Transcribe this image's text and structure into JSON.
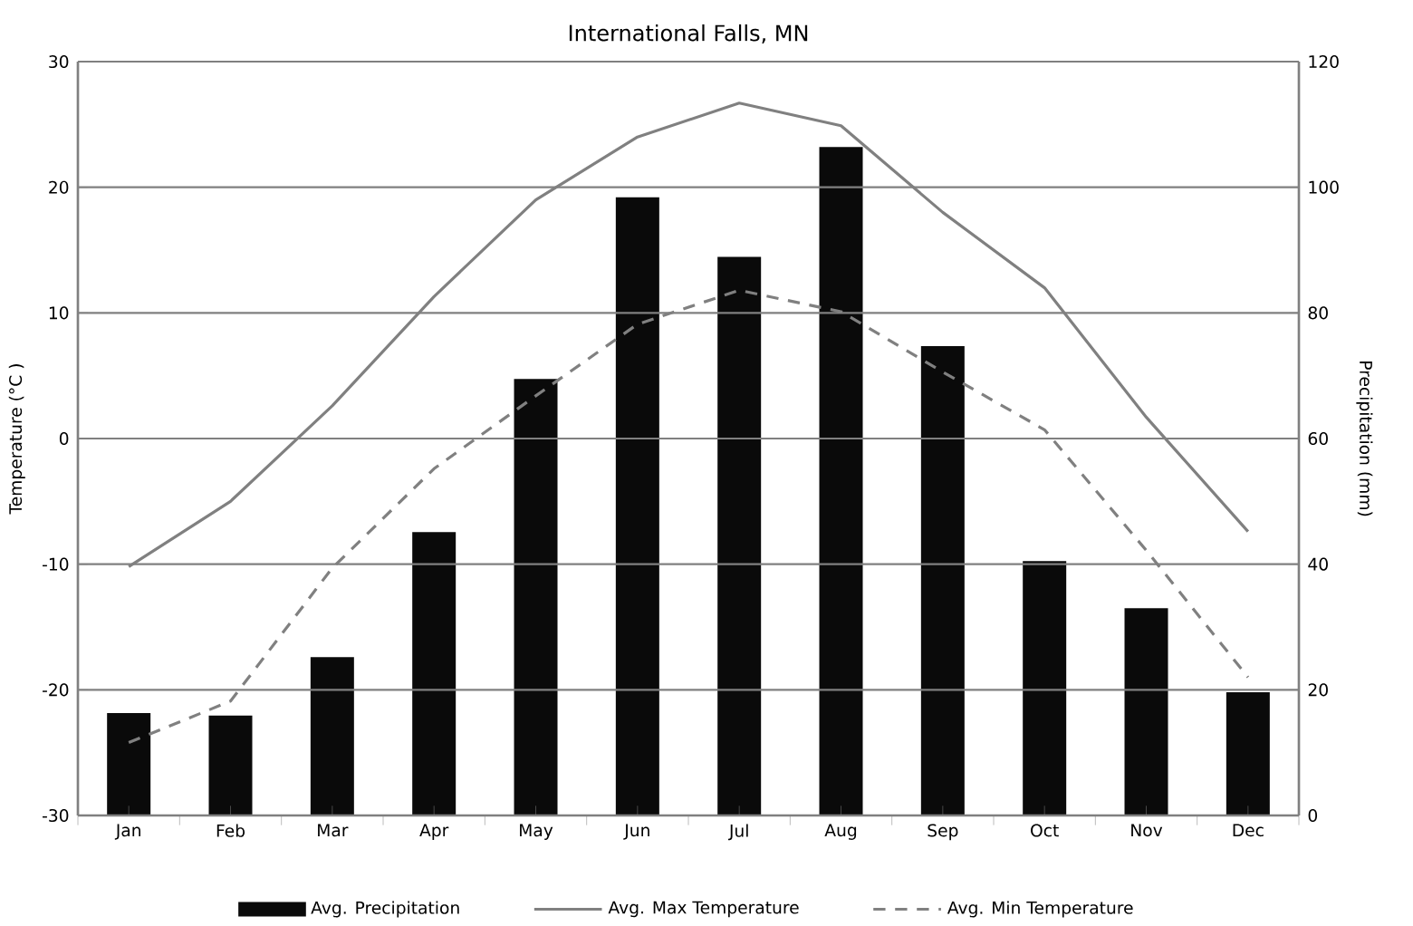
{
  "chart_data": {
    "type": "bar",
    "title": "International Falls, MN",
    "ylabel": "Temperature (°C )",
    "y2label": "Precipitation (mm)",
    "categories": [
      "Jan",
      "Feb",
      "Mar",
      "Apr",
      "May",
      "Jun",
      "Jul",
      "Aug",
      "Sep",
      "Oct",
      "Nov",
      "Dec"
    ],
    "series": [
      {
        "name": "Avg. Precipitation",
        "axis": "y2",
        "color": "#0a0a0a",
        "values": [
          16.3,
          15.9,
          25.2,
          45.1,
          69.5,
          98.4,
          88.9,
          106.4,
          74.7,
          40.5,
          33.0,
          19.6
        ]
      },
      {
        "name": "Avg. Max Temperature",
        "type": "line",
        "color": "#808080",
        "line_style": "solid",
        "values": [
          -10.2,
          -5.0,
          2.6,
          11.3,
          19.0,
          24.0,
          26.7,
          24.9,
          18.0,
          12.0,
          1.7,
          -7.4
        ]
      },
      {
        "name": "Avg. Min Temperature",
        "type": "line",
        "color": "#808080",
        "line_style": "dashed",
        "values": [
          -24.2,
          -20.9,
          -10.3,
          -2.4,
          3.4,
          9.1,
          11.8,
          10.1,
          5.3,
          0.7,
          -8.9,
          -19.0
        ]
      }
    ],
    "ylim": [
      -30,
      30
    ],
    "yticks": [
      -30,
      -20,
      -10,
      0,
      10,
      20,
      30
    ],
    "y2lim": [
      0,
      120
    ],
    "y2ticks": [
      0,
      20,
      40,
      60,
      80,
      100,
      120
    ],
    "grid": "y",
    "legend": "bottom"
  }
}
